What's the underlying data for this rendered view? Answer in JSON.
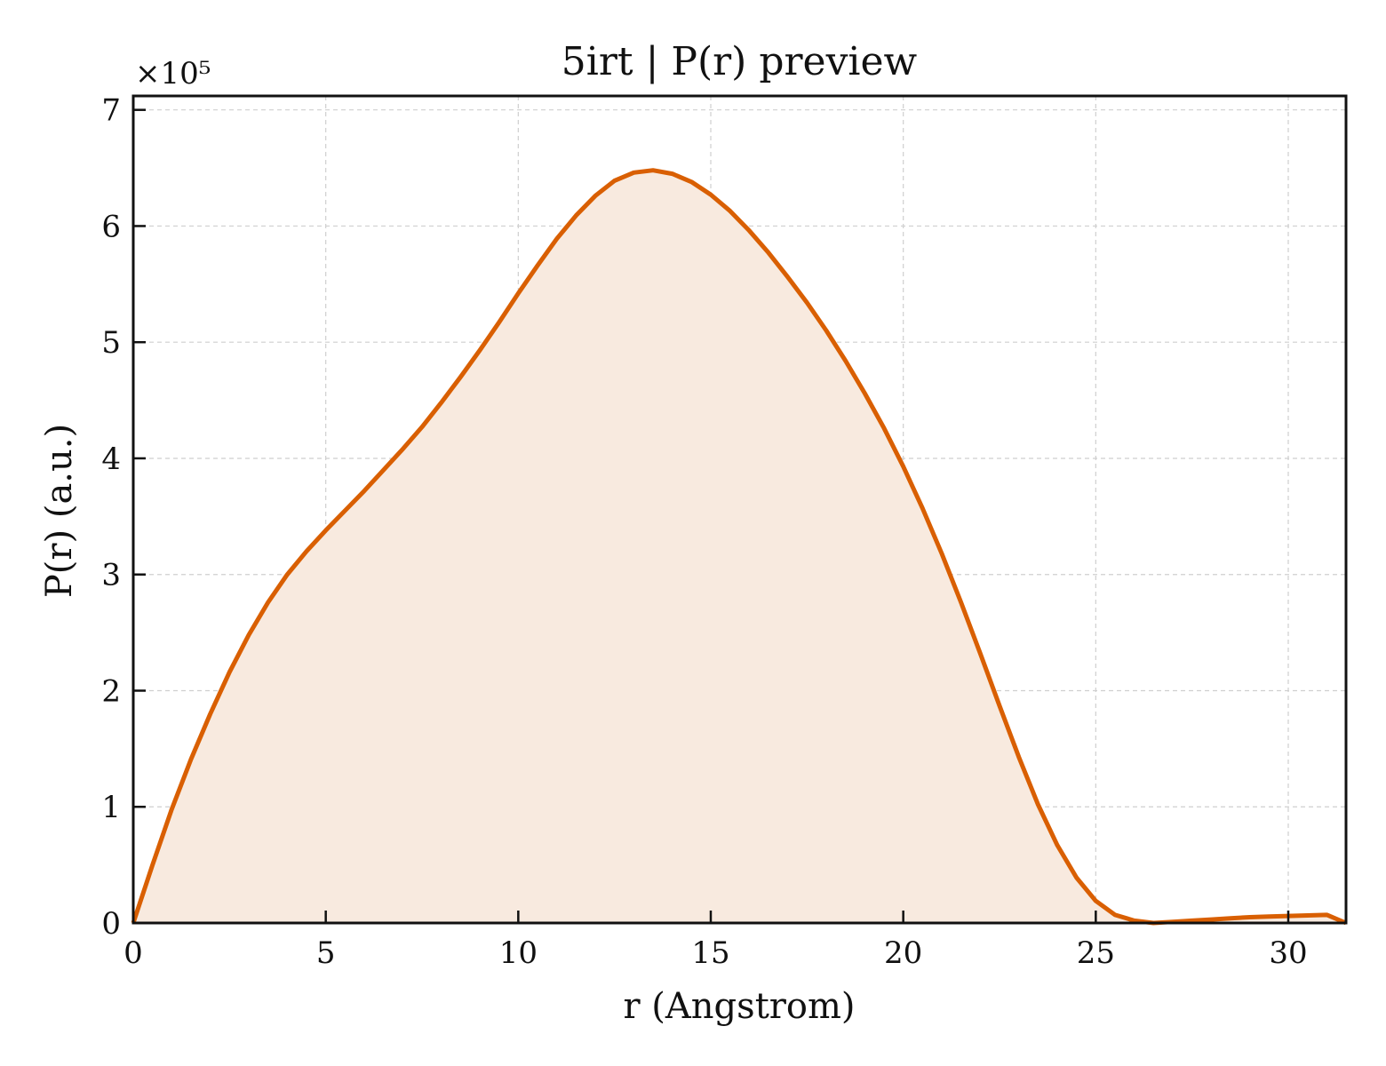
{
  "chart_data": {
    "type": "area",
    "title": "5irt | P(r) preview",
    "xlabel": "r (Angstrom)",
    "ylabel": "P(r) (a.u.)",
    "y_multiplier_label": "×10⁵",
    "y_scale": 100000,
    "xlim": [
      0,
      31.5
    ],
    "ylim": [
      0,
      7.12
    ],
    "x_ticks": [
      0,
      5,
      10,
      15,
      20,
      25,
      30
    ],
    "y_ticks": [
      0,
      1,
      2,
      3,
      4,
      5,
      6,
      7
    ],
    "grid": true,
    "line_color": "#d95f02",
    "fill_color": "#f8eadf",
    "series": [
      {
        "x": [
          0,
          0.5,
          1,
          1.5,
          2,
          2.5,
          3,
          3.5,
          4,
          4.5,
          5,
          5.5,
          6,
          6.5,
          7,
          7.5,
          8,
          8.5,
          9,
          9.5,
          10,
          10.5,
          11,
          11.5,
          12,
          12.5,
          13,
          13.5,
          14,
          14.5,
          15,
          15.5,
          16,
          16.5,
          17,
          17.5,
          18,
          18.5,
          19,
          19.5,
          20,
          20.5,
          21,
          21.5,
          22,
          22.5,
          23,
          23.5,
          24,
          24.5,
          25,
          25.5,
          26,
          26.5,
          27,
          27.5,
          28,
          28.5,
          29,
          29.5,
          30,
          30.5,
          31,
          31.5
        ],
        "y": [
          0,
          0.5,
          0.98,
          1.41,
          1.8,
          2.16,
          2.48,
          2.76,
          3.0,
          3.2,
          3.38,
          3.55,
          3.72,
          3.9,
          4.08,
          4.27,
          4.48,
          4.7,
          4.93,
          5.17,
          5.42,
          5.66,
          5.89,
          6.09,
          6.26,
          6.39,
          6.46,
          6.48,
          6.45,
          6.38,
          6.27,
          6.13,
          5.96,
          5.77,
          5.56,
          5.34,
          5.1,
          4.84,
          4.56,
          4.26,
          3.93,
          3.57,
          3.18,
          2.76,
          2.32,
          1.87,
          1.43,
          1.02,
          0.67,
          0.39,
          0.19,
          0.07,
          0.02,
          0.0,
          0.01,
          0.02,
          0.03,
          0.04,
          0.05,
          0.055,
          0.06,
          0.065,
          0.07,
          0.0
        ]
      }
    ]
  }
}
